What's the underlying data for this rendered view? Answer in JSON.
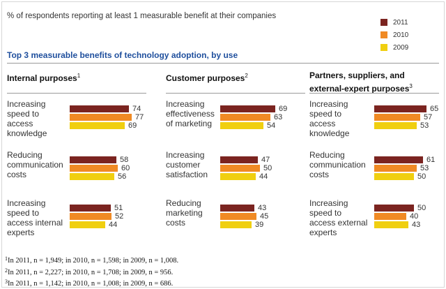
{
  "header": {
    "text": "% of respondents reporting at least 1 measurable benefit at their companies",
    "section_title": "Top 3 measurable benefits of technology adoption, by use"
  },
  "legend": [
    {
      "label": "2011",
      "color": "#7b2420"
    },
    {
      "label": "2010",
      "color": "#f08a24"
    },
    {
      "label": "2009",
      "color": "#f0cf10"
    }
  ],
  "chart_data": {
    "type": "bar",
    "orientation": "horizontal",
    "series_names": [
      "2011",
      "2010",
      "2009"
    ],
    "groups": [
      {
        "title": "Internal purposes",
        "footnote": "1",
        "categories": [
          {
            "lines": [
              "Increasing",
              "speed to",
              "access",
              "knowledge"
            ],
            "values": [
              74,
              77,
              69
            ]
          },
          {
            "lines": [
              "Reducing",
              "communication",
              "costs"
            ],
            "values": [
              58,
              60,
              56
            ]
          },
          {
            "lines": [
              "Increasing",
              "speed to",
              "access internal",
              "experts"
            ],
            "values": [
              51,
              52,
              44
            ]
          }
        ]
      },
      {
        "title": "Customer purposes",
        "footnote": "2",
        "categories": [
          {
            "lines": [
              "Increasing",
              "effectiveness",
              "of marketing"
            ],
            "values": [
              69,
              63,
              54
            ]
          },
          {
            "lines": [
              "Increasing",
              "customer",
              "satisfaction"
            ],
            "values": [
              47,
              50,
              44
            ]
          },
          {
            "lines": [
              "Reducing",
              "marketing",
              "costs"
            ],
            "values": [
              43,
              45,
              39
            ]
          }
        ]
      },
      {
        "title": "Partners, suppliers, and external-expert purposes",
        "title_lines": [
          "Partners, suppliers, and",
          "external-expert purposes"
        ],
        "footnote": "3",
        "categories": [
          {
            "lines": [
              "Increasing",
              "speed to",
              "access",
              "knowledge"
            ],
            "values": [
              65,
              57,
              53
            ]
          },
          {
            "lines": [
              "Reducing",
              "communication",
              "costs"
            ],
            "values": [
              61,
              53,
              50
            ]
          },
          {
            "lines": [
              "Increasing",
              "speed to",
              "access external",
              "experts"
            ],
            "values": [
              50,
              40,
              43
            ]
          }
        ]
      }
    ]
  },
  "footnotes": [
    {
      "num": "1",
      "text": "In 2011, n = 1,949; in 2010, n = 1,598; in 2009, n = 1,008."
    },
    {
      "num": "2",
      "text": "In 2011, n = 2,227; in 2010, n = 1,708; in 2009, n = 956."
    },
    {
      "num": "3",
      "text": "In 2011, n = 1,142; in 2010, n = 1,008; in 2009, n = 686."
    }
  ]
}
